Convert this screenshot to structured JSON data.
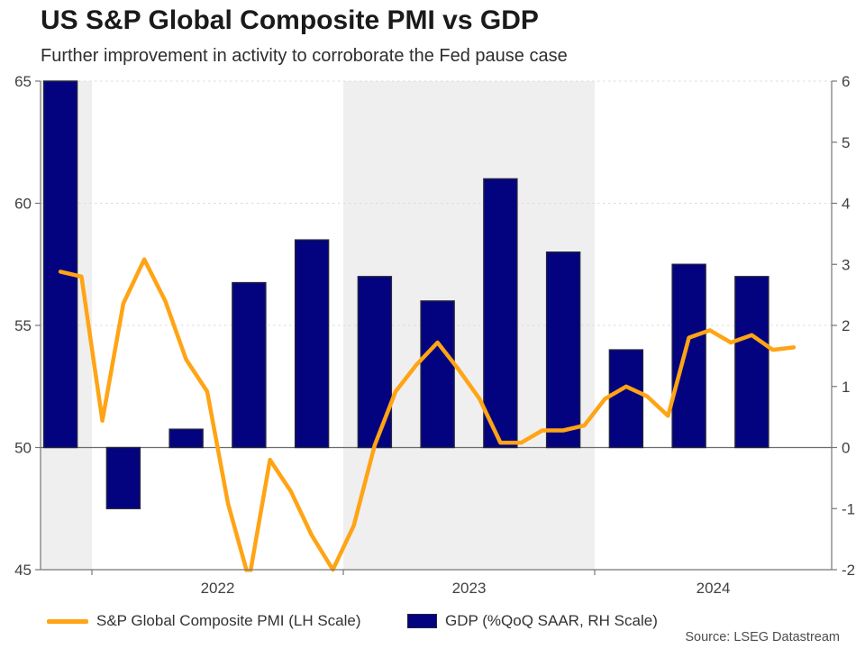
{
  "header": {
    "title": "US S&P Global Composite PMI vs GDP",
    "subtitle": "Further improvement in activity to corroborate the Fed pause case"
  },
  "legend": {
    "pmi_label": "S&P Global Composite PMI (LH Scale)",
    "gdp_label": "GDP (%QoQ SAAR, RH Scale)"
  },
  "source": "Source: LSEG Datastream",
  "colors": {
    "pmi_line": "#FFA415",
    "gdp_bar": "#03037F",
    "gdp_bar_outline": "#23233F",
    "year_band": "#EFEFEF",
    "gridline": "#DBDBDB",
    "axis": "#767676",
    "zero_line": "#6B6B6B",
    "tick_text": "#414141"
  },
  "chart_data": {
    "type": "combo_bar_line",
    "title": "US S&P Global Composite PMI vs GDP",
    "subtitle": "Further improvement in activity to corroborate the Fed pause case",
    "x_axis": {
      "domain_start_year": 2021.796,
      "domain_end_year": 2024.943,
      "year_tick_boundaries": [
        2022,
        2023,
        2024
      ],
      "year_labels": [
        "2022",
        "2023",
        "2024"
      ],
      "shaded_year_bands": [
        [
          2021.796,
          2022
        ],
        [
          2023,
          2024
        ]
      ]
    },
    "left_axis": {
      "range": [
        45,
        65
      ],
      "ticks": [
        45,
        50,
        55,
        60,
        65
      ]
    },
    "right_axis": {
      "range": [
        -2,
        6
      ],
      "ticks": [
        -2,
        -1,
        0,
        1,
        2,
        3,
        4,
        5,
        6
      ]
    },
    "gridlines_at_left_values": [
      55,
      60,
      65
    ],
    "zero_line_left_value": 50,
    "legend_position": "bottom",
    "bar_series": {
      "name": "GDP (%QoQ SAAR, RH Scale)",
      "axis": "right",
      "quarters": [
        "2021-Q4",
        "2022-Q1",
        "2022-Q2",
        "2022-Q3",
        "2022-Q4",
        "2023-Q1",
        "2023-Q2",
        "2023-Q3",
        "2023-Q4",
        "2024-Q1",
        "2024-Q2",
        "2024-Q3"
      ],
      "values": [
        6.0,
        -1.0,
        0.3,
        2.7,
        3.4,
        2.8,
        2.4,
        4.4,
        3.2,
        1.6,
        3.0,
        2.8
      ]
    },
    "line_series": {
      "name": "S&P Global Composite PMI (LH Scale)",
      "axis": "left",
      "months": [
        "2021-11",
        "2021-12",
        "2022-01",
        "2022-02",
        "2022-03",
        "2022-04",
        "2022-05",
        "2022-06",
        "2022-07",
        "2022-08",
        "2022-09",
        "2022-10",
        "2022-11",
        "2022-12",
        "2023-01",
        "2023-02",
        "2023-03",
        "2023-04",
        "2023-05",
        "2023-06",
        "2023-07",
        "2023-08",
        "2023-09",
        "2023-10",
        "2023-11",
        "2023-12",
        "2024-01",
        "2024-02",
        "2024-03",
        "2024-04",
        "2024-05",
        "2024-06",
        "2024-07",
        "2024-08",
        "2024-09",
        "2024-10"
      ],
      "values": [
        57.2,
        57.0,
        51.1,
        55.9,
        57.7,
        56.0,
        53.6,
        52.3,
        47.7,
        44.6,
        49.5,
        48.2,
        46.4,
        45.0,
        46.8,
        50.1,
        52.3,
        53.4,
        54.3,
        53.2,
        52.0,
        50.2,
        50.2,
        50.7,
        50.7,
        50.9,
        52.0,
        52.5,
        52.1,
        51.3,
        54.5,
        54.8,
        54.3,
        54.6,
        54.0,
        54.1
      ]
    }
  }
}
